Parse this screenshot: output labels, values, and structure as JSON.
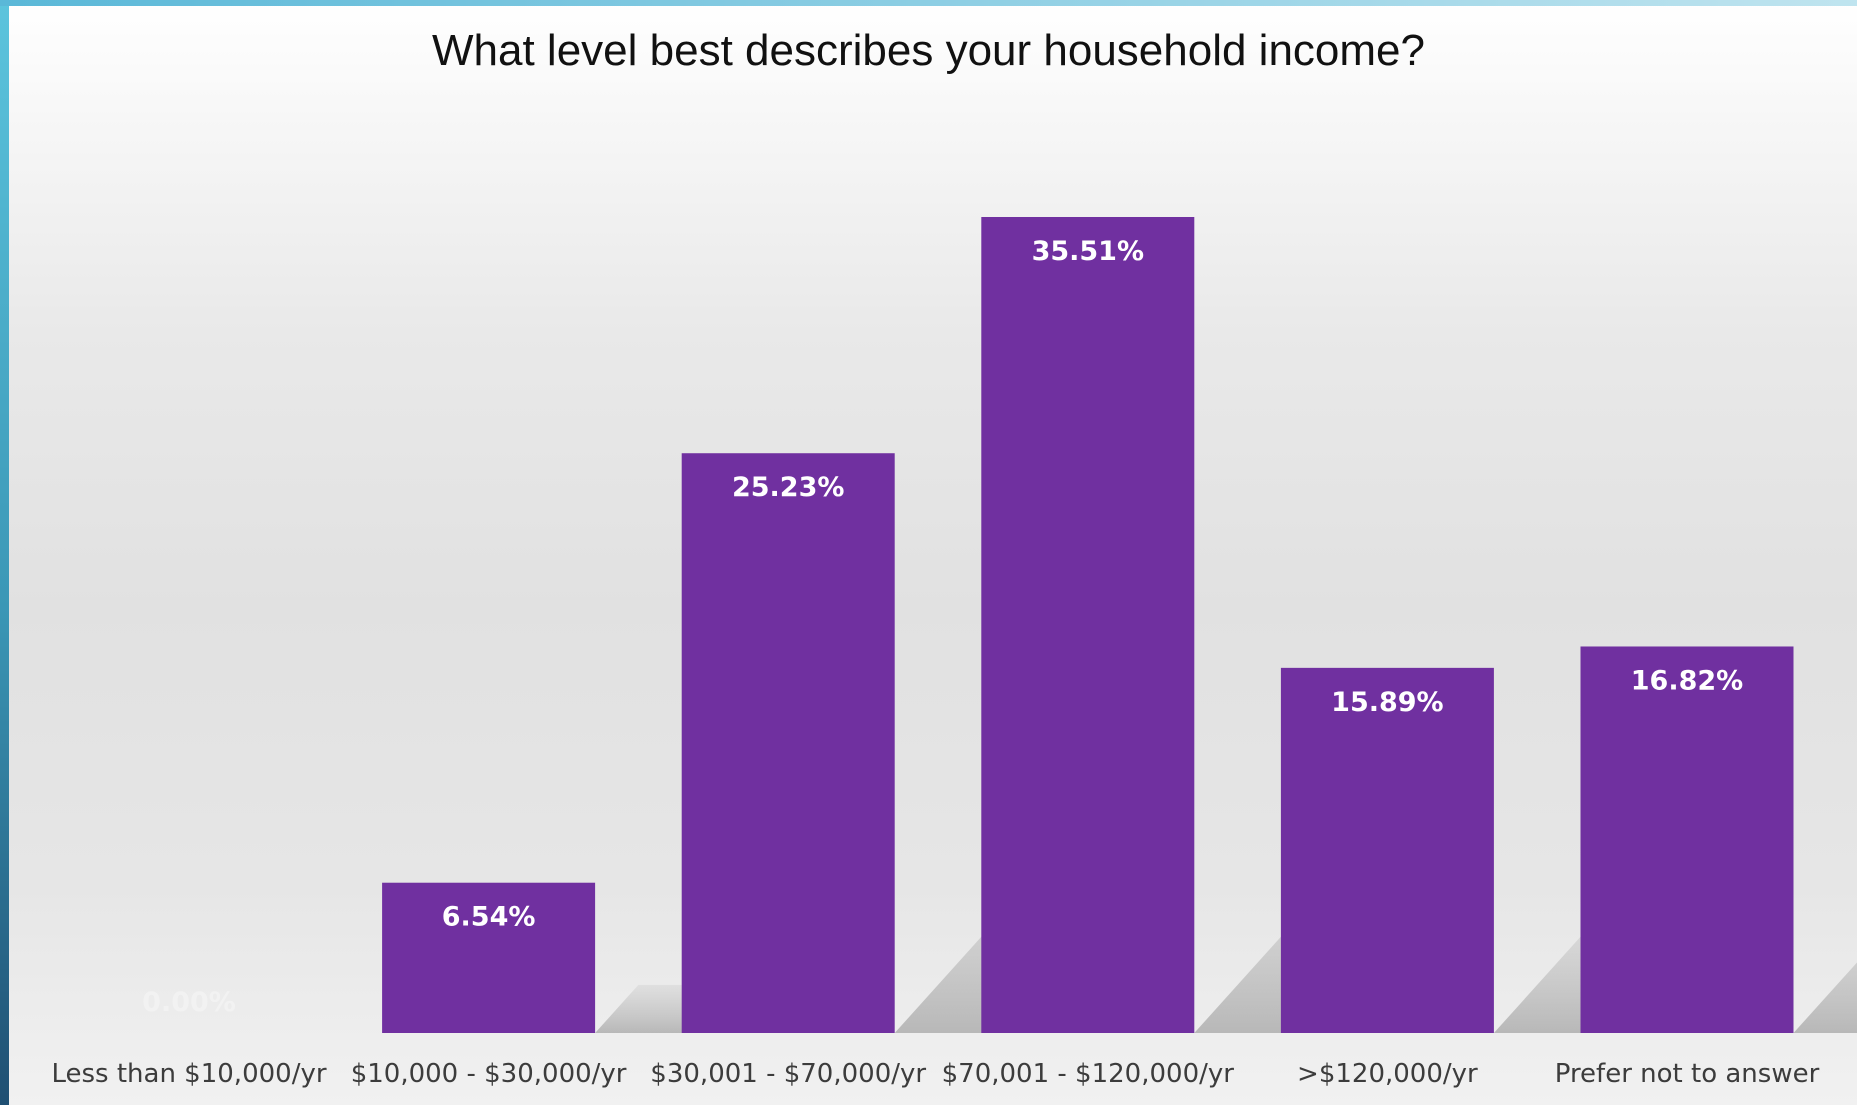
{
  "chart_data": {
    "type": "bar",
    "title": "What level best describes your household income?",
    "categories": [
      "Less than $10,000/yr",
      "$10,000 - $30,000/yr",
      "$30,001 - $70,000/yr",
      "$70,001 - $120,000/yr",
      ">$120,000/yr",
      "Prefer not to answer"
    ],
    "values": [
      0.0,
      6.54,
      25.23,
      35.51,
      15.89,
      16.82
    ],
    "data_labels": [
      "0.00%",
      "6.54%",
      "25.23%",
      "35.51%",
      "15.89%",
      "16.82%"
    ],
    "ylim": [
      0,
      40
    ],
    "grid": false,
    "legend": "none",
    "bar_color": "#7030a0",
    "value_label_color": "#ffffff"
  }
}
